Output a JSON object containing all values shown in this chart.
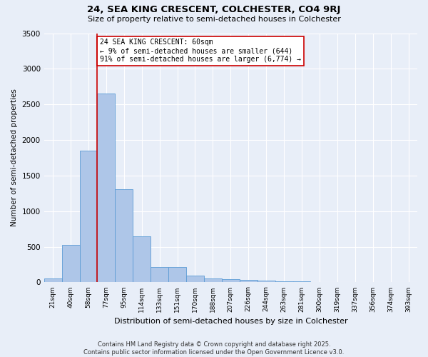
{
  "title": "24, SEA KING CRESCENT, COLCHESTER, CO4 9RJ",
  "subtitle": "Size of property relative to semi-detached houses in Colchester",
  "xlabel": "Distribution of semi-detached houses by size in Colchester",
  "ylabel": "Number of semi-detached properties",
  "footer1": "Contains HM Land Registry data © Crown copyright and database right 2025.",
  "footer2": "Contains public sector information licensed under the Open Government Licence v3.0.",
  "bin_labels": [
    "21sqm",
    "40sqm",
    "58sqm",
    "77sqm",
    "95sqm",
    "114sqm",
    "133sqm",
    "151sqm",
    "170sqm",
    "188sqm",
    "207sqm",
    "226sqm",
    "244sqm",
    "263sqm",
    "281sqm",
    "300sqm",
    "319sqm",
    "337sqm",
    "356sqm",
    "374sqm",
    "393sqm"
  ],
  "bar_heights": [
    55,
    530,
    1850,
    2650,
    1310,
    645,
    210,
    210,
    95,
    55,
    40,
    30,
    20,
    15,
    10,
    5,
    5,
    3,
    2,
    1,
    0
  ],
  "bar_color": "#aec6e8",
  "bar_edge_color": "#5b9bd5",
  "bg_color": "#e8eef8",
  "grid_color": "#ffffff",
  "vline_bin": 2,
  "vline_color": "#cc0000",
  "annotation_text": "24 SEA KING CRESCENT: 60sqm\n← 9% of semi-detached houses are smaller (644)\n91% of semi-detached houses are larger (6,774) →",
  "annotation_box_color": "#ffffff",
  "annotation_box_edge": "#cc0000",
  "ylim": [
    0,
    3500
  ],
  "yticks": [
    0,
    500,
    1000,
    1500,
    2000,
    2500,
    3000,
    3500
  ]
}
